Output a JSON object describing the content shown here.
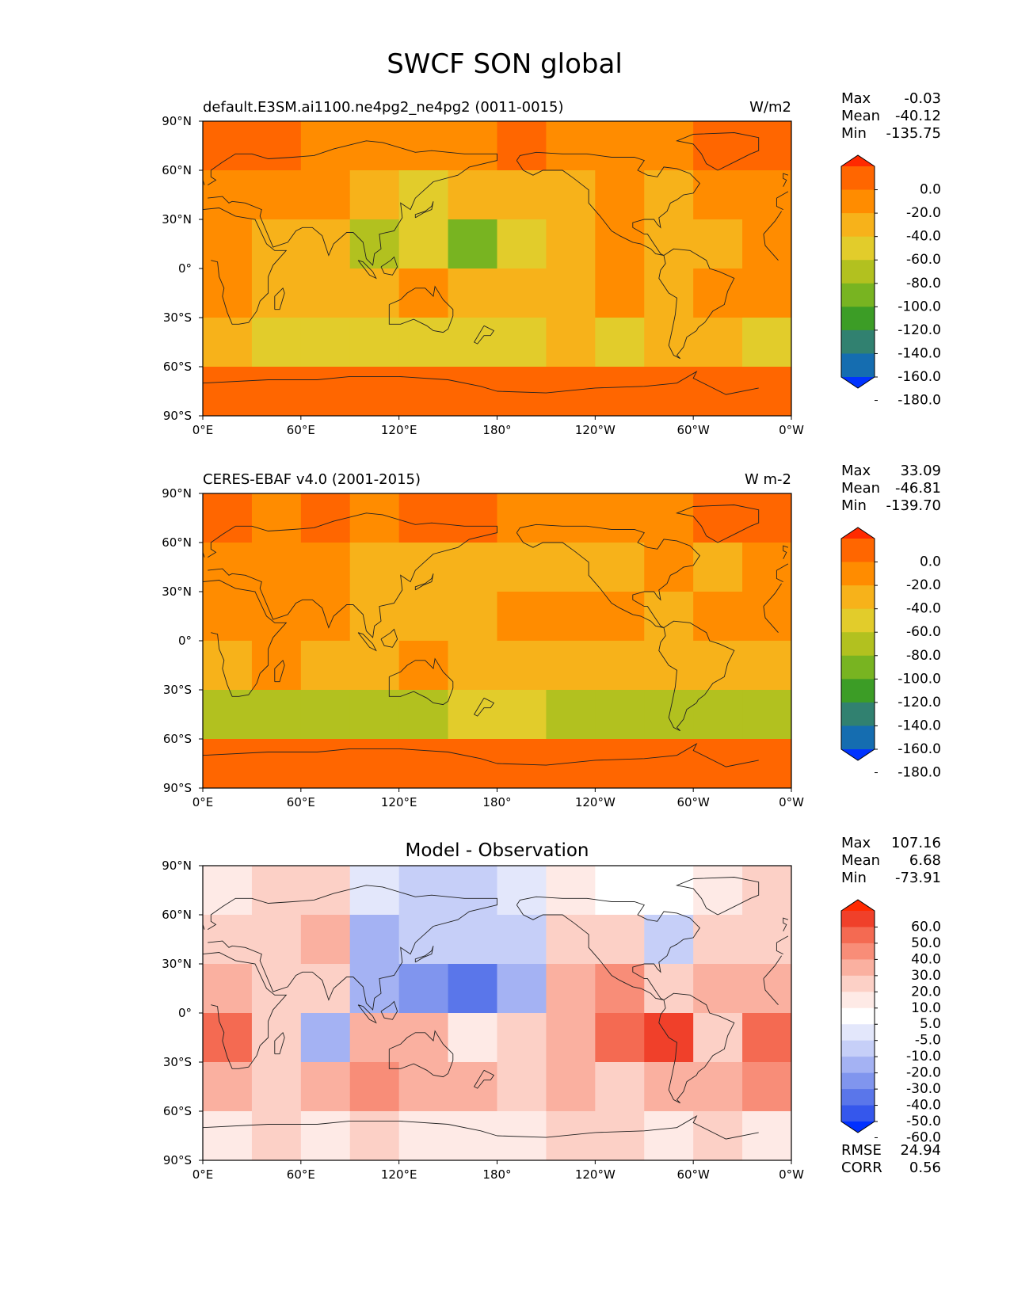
{
  "figure": {
    "title": "SWCF SON global"
  },
  "axes": {
    "lat_ticks": [
      "90°N",
      "60°N",
      "30°N",
      "0°",
      "30°S",
      "60°S",
      "90°S"
    ],
    "lon_ticks": [
      "0°E",
      "60°E",
      "120°E",
      "180°",
      "120°W",
      "60°W",
      "0°W"
    ]
  },
  "panels": [
    {
      "title_left": "default.E3SM.ai1100.ne4pg2_ne4pg2 (0011-0015)",
      "title_center": "",
      "units": "W/m2",
      "stats": [
        [
          "Max",
          "-0.03"
        ],
        [
          "Mean",
          "-40.12"
        ],
        [
          "Min",
          "-135.75"
        ]
      ],
      "colorbar_labels": [
        "0.0",
        "-20.0",
        "-40.0",
        "-60.0",
        "-80.0",
        "-100.0",
        "-120.0",
        "-140.0",
        "-160.0",
        "-180.0"
      ],
      "extra_stats": []
    },
    {
      "title_left": "CERES-EBAF v4.0 (2001-2015)",
      "title_center": "",
      "units": "W m-2",
      "stats": [
        [
          "Max",
          "33.09"
        ],
        [
          "Mean",
          "-46.81"
        ],
        [
          "Min",
          "-139.70"
        ]
      ],
      "colorbar_labels": [
        "0.0",
        "-20.0",
        "-40.0",
        "-60.0",
        "-80.0",
        "-100.0",
        "-120.0",
        "-140.0",
        "-160.0",
        "-180.0"
      ],
      "extra_stats": []
    },
    {
      "title_left": "",
      "title_center": "Model - Observation",
      "units": "",
      "stats": [
        [
          "Max",
          "107.16"
        ],
        [
          "Mean",
          "6.68"
        ],
        [
          "Min",
          "-73.91"
        ]
      ],
      "colorbar_labels": [
        "60.0",
        "50.0",
        "40.0",
        "30.0",
        "20.0",
        "10.0",
        "5.0",
        "-5.0",
        "-10.0",
        "-20.0",
        "-30.0",
        "-40.0",
        "-50.0",
        "-60.0"
      ],
      "extra_stats": [
        [
          "RMSE",
          "24.94"
        ],
        [
          "CORR",
          "0.56"
        ]
      ]
    }
  ],
  "colors": {
    "field_scale": [
      "#ff2a00",
      "#ff6600",
      "#ff8c00",
      "#f7b21a",
      "#e2cc2b",
      "#b2c11f",
      "#78b421",
      "#3c9d26",
      "#318170",
      "#156db0",
      "#0033ff"
    ],
    "diff_scale": [
      "#ff2a00",
      "#f0402a",
      "#f46a52",
      "#f88d78",
      "#fab0a0",
      "#fcd0c6",
      "#feeae6",
      "#ffffff",
      "#e3e7fb",
      "#c6cff8",
      "#a4b2f3",
      "#8095ee",
      "#5a76ea",
      "#3557ec",
      "#0030ff"
    ]
  },
  "chart_data": [
    {
      "type": "heatmap",
      "title": "default.E3SM.ai1100.ne4pg2_ne4pg2 (0011-0015)",
      "units": "W/m2",
      "x": [
        0,
        30,
        60,
        90,
        120,
        150,
        180,
        210,
        240,
        270,
        300,
        330
      ],
      "y": [
        75,
        45,
        15,
        -15,
        -45,
        -75
      ],
      "xlim": [
        0,
        360
      ],
      "ylim": [
        -90,
        90
      ],
      "levels": [
        -180,
        -160,
        -140,
        -120,
        -100,
        -80,
        -60,
        -40,
        -20,
        0
      ],
      "values": [
        [
          -15,
          -20,
          -25,
          -30,
          -30,
          -25,
          -20,
          -25,
          -30,
          -30,
          -20,
          -20
        ],
        [
          -25,
          -30,
          -35,
          -60,
          -65,
          -60,
          -55,
          -45,
          -40,
          -50,
          -40,
          -25
        ],
        [
          -30,
          -45,
          -50,
          -90,
          -80,
          -110,
          -70,
          -45,
          -35,
          -45,
          -50,
          -25
        ],
        [
          -40,
          -45,
          -50,
          -50,
          -40,
          -50,
          -55,
          -45,
          -30,
          -45,
          -40,
          -30
        ],
        [
          -60,
          -65,
          -70,
          -70,
          -65,
          -70,
          -65,
          -60,
          -65,
          -60,
          -60,
          -70
        ],
        [
          -15,
          -15,
          -10,
          -15,
          -10,
          -15,
          -15,
          -10,
          -15,
          -10,
          -15,
          -15
        ]
      ]
    },
    {
      "type": "heatmap",
      "title": "CERES-EBAF v4.0 (2001-2015)",
      "units": "W m-2",
      "x": [
        0,
        30,
        60,
        90,
        120,
        150,
        180,
        210,
        240,
        270,
        300,
        330
      ],
      "y": [
        75,
        45,
        15,
        -15,
        -45,
        -75
      ],
      "xlim": [
        0,
        360
      ],
      "ylim": [
        -90,
        90
      ],
      "levels": [
        -180,
        -160,
        -140,
        -120,
        -100,
        -80,
        -60,
        -40,
        -20,
        0
      ],
      "values": [
        [
          -20,
          -25,
          -20,
          -25,
          -20,
          -20,
          -25,
          -30,
          -25,
          -30,
          -20,
          -15
        ],
        [
          -30,
          -35,
          -40,
          -45,
          -50,
          -50,
          -50,
          -45,
          -50,
          -40,
          -45,
          -30
        ],
        [
          -35,
          -30,
          -40,
          -50,
          -55,
          -45,
          -35,
          -30,
          -35,
          -50,
          -40,
          -30
        ],
        [
          -60,
          -35,
          -55,
          -60,
          -40,
          -55,
          -60,
          -55,
          -50,
          -45,
          -55,
          -50
        ],
        [
          -85,
          -90,
          -95,
          -90,
          -85,
          -80,
          -80,
          -85,
          -85,
          -90,
          -95,
          -90
        ],
        [
          -5,
          -10,
          -5,
          -10,
          -10,
          -5,
          -10,
          -10,
          -5,
          -10,
          -10,
          -5
        ]
      ]
    },
    {
      "type": "heatmap",
      "title": "Model - Observation",
      "x": [
        0,
        30,
        60,
        90,
        120,
        150,
        180,
        210,
        240,
        270,
        300,
        330
      ],
      "y": [
        75,
        45,
        15,
        -15,
        -45,
        -75
      ],
      "xlim": [
        0,
        360
      ],
      "ylim": [
        -90,
        90
      ],
      "levels": [
        -60,
        -50,
        -40,
        -30,
        -20,
        -10,
        -5,
        5,
        10,
        20,
        30,
        40,
        50,
        60
      ],
      "values": [
        [
          5,
          15,
          10,
          -10,
          -15,
          -15,
          -10,
          5,
          -5,
          0,
          5,
          10
        ],
        [
          10,
          15,
          20,
          -25,
          -20,
          -20,
          -20,
          15,
          10,
          -15,
          15,
          15
        ],
        [
          25,
          10,
          10,
          -30,
          -40,
          -50,
          -30,
          25,
          35,
          10,
          25,
          20
        ],
        [
          45,
          10,
          -30,
          25,
          25,
          5,
          15,
          20,
          40,
          50,
          10,
          40
        ],
        [
          20,
          15,
          20,
          30,
          25,
          20,
          15,
          20,
          15,
          20,
          25,
          30
        ],
        [
          5,
          10,
          5,
          10,
          5,
          5,
          5,
          10,
          10,
          5,
          10,
          5
        ]
      ]
    }
  ]
}
